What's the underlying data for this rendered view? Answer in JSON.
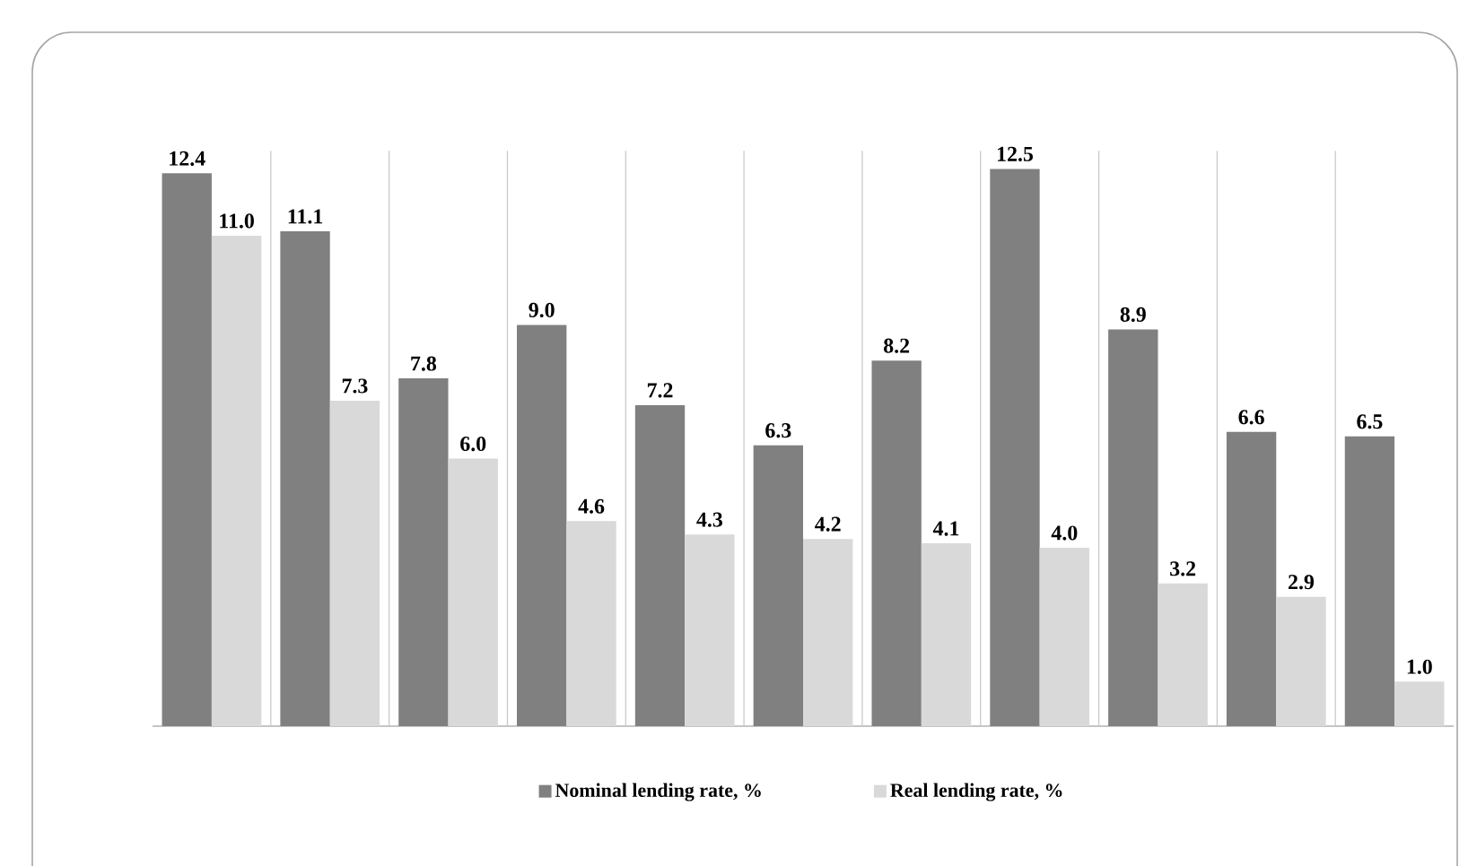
{
  "chart_data": {
    "type": "bar",
    "categories": [
      null,
      null,
      null,
      null,
      null,
      null,
      null,
      null,
      null,
      null,
      null
    ],
    "series": [
      {
        "name": "Nominal lending rate, %",
        "color": "#808080",
        "values": [
          12.4,
          11.1,
          7.8,
          9.0,
          7.2,
          6.3,
          8.2,
          12.5,
          8.9,
          6.6,
          6.5
        ],
        "value_labels": [
          "12.4",
          "11.1",
          "7.8",
          "9.0",
          "7.2",
          "6.3",
          "8.2",
          "12.5",
          "8.9",
          "6.6",
          "6.5"
        ]
      },
      {
        "name": "Real lending rate, %",
        "color": "#d9d9d9",
        "values": [
          11.0,
          7.3,
          6.0,
          4.6,
          4.3,
          4.2,
          4.1,
          4.0,
          3.2,
          2.9,
          1.0
        ],
        "value_labels": [
          "11.0",
          "7.3",
          "6.0",
          "4.6",
          "4.3",
          "4.2",
          "4.1",
          "4.0",
          "3.2",
          "2.9",
          "1.0"
        ]
      }
    ],
    "grid": "x",
    "legend": "bottom"
  }
}
